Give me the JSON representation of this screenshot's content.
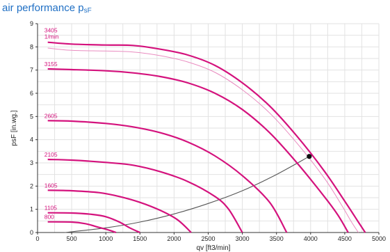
{
  "title": {
    "main": "air performance p",
    "sub": "sF"
  },
  "chart_data": {
    "type": "line",
    "xlabel": "qv [ft3/min]",
    "ylabel": "psF [in.wg.]",
    "xlim": [
      0,
      5000
    ],
    "ylim": [
      0,
      9
    ],
    "xticks": [
      0,
      500,
      1000,
      1500,
      2000,
      2500,
      3000,
      3500,
      4000,
      4500,
      5000
    ],
    "yticks": [
      0,
      1,
      2,
      3,
      4,
      5,
      6,
      7,
      8,
      9
    ],
    "grid": true,
    "curve_color": "#d4127d",
    "thin_curve_color": "#e98cc0",
    "system_curve_color": "#555555",
    "point_color": "#111111",
    "speed_unit": "1/min",
    "series": [
      {
        "name": "3405",
        "points": [
          [
            150,
            8.2
          ],
          [
            500,
            8.12
          ],
          [
            1000,
            8.08
          ],
          [
            1400,
            8.06
          ],
          [
            1800,
            7.9
          ],
          [
            2200,
            7.65
          ],
          [
            2600,
            7.2
          ],
          [
            3000,
            6.45
          ],
          [
            3400,
            5.45
          ],
          [
            3800,
            4.15
          ],
          [
            4200,
            2.65
          ],
          [
            4500,
            1.35
          ],
          [
            4700,
            0.45
          ],
          [
            4800,
            0
          ]
        ]
      },
      {
        "name": "",
        "thin": true,
        "points": [
          [
            150,
            7.95
          ],
          [
            500,
            7.85
          ],
          [
            1000,
            7.82
          ],
          [
            1400,
            7.78
          ],
          [
            1800,
            7.62
          ],
          [
            2200,
            7.35
          ],
          [
            2600,
            6.9
          ],
          [
            3000,
            6.15
          ],
          [
            3400,
            5.15
          ],
          [
            3800,
            3.85
          ],
          [
            4200,
            2.35
          ],
          [
            4450,
            1.2
          ],
          [
            4600,
            0.45
          ],
          [
            4700,
            0
          ]
        ]
      },
      {
        "name": "3155",
        "points": [
          [
            150,
            7.05
          ],
          [
            500,
            7.02
          ],
          [
            1000,
            6.97
          ],
          [
            1400,
            6.88
          ],
          [
            1800,
            6.72
          ],
          [
            2200,
            6.45
          ],
          [
            2600,
            6.0
          ],
          [
            3000,
            5.3
          ],
          [
            3400,
            4.3
          ],
          [
            3800,
            3.0
          ],
          [
            4200,
            1.55
          ],
          [
            4400,
            0.75
          ],
          [
            4550,
            0
          ]
        ]
      },
      {
        "name": "2605",
        "points": [
          [
            150,
            4.82
          ],
          [
            500,
            4.8
          ],
          [
            1000,
            4.7
          ],
          [
            1400,
            4.55
          ],
          [
            1800,
            4.3
          ],
          [
            2200,
            3.9
          ],
          [
            2600,
            3.3
          ],
          [
            3000,
            2.45
          ],
          [
            3400,
            1.3
          ],
          [
            3650,
            0
          ]
        ]
      },
      {
        "name": "2105",
        "points": [
          [
            150,
            3.15
          ],
          [
            500,
            3.12
          ],
          [
            1000,
            3.02
          ],
          [
            1400,
            2.9
          ],
          [
            1800,
            2.62
          ],
          [
            2200,
            2.2
          ],
          [
            2600,
            1.55
          ],
          [
            2800,
            1.0
          ],
          [
            3000,
            0
          ]
        ]
      },
      {
        "name": "1605",
        "points": [
          [
            150,
            1.82
          ],
          [
            500,
            1.8
          ],
          [
            900,
            1.72
          ],
          [
            1200,
            1.55
          ],
          [
            1500,
            1.3
          ],
          [
            1800,
            0.95
          ],
          [
            2050,
            0.55
          ],
          [
            2250,
            0
          ]
        ]
      },
      {
        "name": "1105",
        "points": [
          [
            150,
            0.85
          ],
          [
            500,
            0.84
          ],
          [
            800,
            0.78
          ],
          [
            1000,
            0.68
          ],
          [
            1200,
            0.45
          ],
          [
            1350,
            0.2
          ],
          [
            1500,
            0
          ]
        ]
      },
      {
        "name": "800",
        "points": [
          [
            150,
            0.46
          ],
          [
            500,
            0.45
          ],
          [
            700,
            0.38
          ],
          [
            900,
            0.22
          ],
          [
            1050,
            0.1
          ],
          [
            1150,
            0
          ]
        ]
      }
    ],
    "system_curve": [
      [
        400,
        0.0
      ],
      [
        1000,
        0.2
      ],
      [
        1500,
        0.45
      ],
      [
        2000,
        0.8
      ],
      [
        2500,
        1.25
      ],
      [
        3000,
        1.8
      ],
      [
        3500,
        2.5
      ],
      [
        3980,
        3.28
      ]
    ],
    "operating_point": [
      3980,
      3.28
    ]
  }
}
